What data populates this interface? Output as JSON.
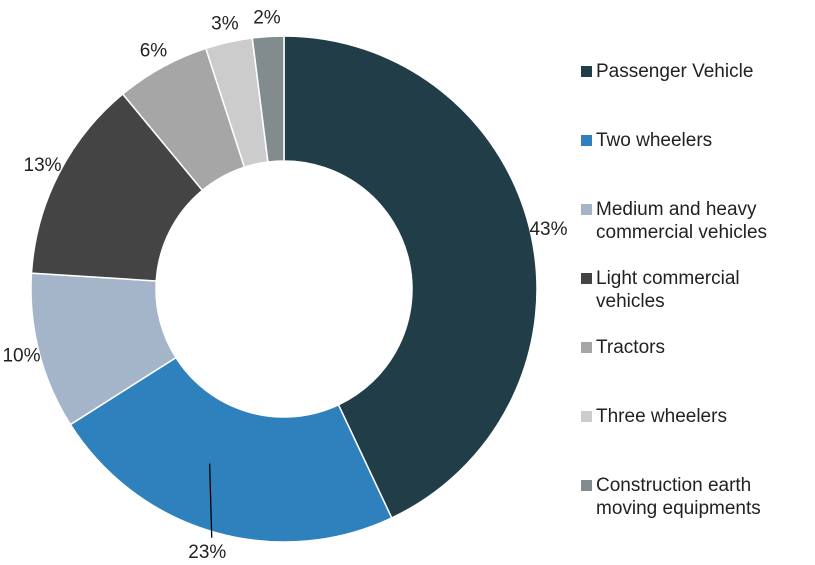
{
  "chart_data": {
    "type": "donut",
    "categories": [
      "Passenger Vehicle",
      "Two wheelers",
      "Medium and heavy commercial vehicles",
      "Light commercial vehicles",
      "Tractors",
      "Three wheelers",
      "Construction earth moving equipments"
    ],
    "values": [
      43,
      23,
      10,
      13,
      6,
      3,
      2
    ],
    "value_labels": [
      "43%",
      "23%",
      "10%",
      "13%",
      "6%",
      "3%",
      "2%"
    ],
    "colors": [
      "#213d47",
      "#2e81bd",
      "#a5b5c9",
      "#444444",
      "#a6a6a6",
      "#cccccc",
      "#828c8f"
    ],
    "legend": "right"
  }
}
